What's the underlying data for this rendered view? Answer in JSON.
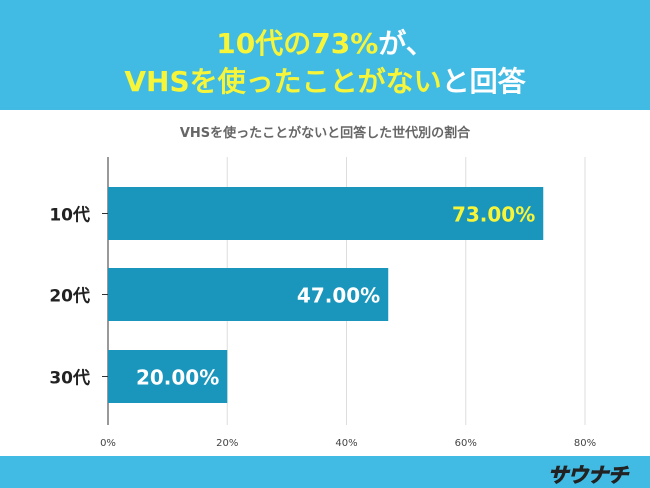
{
  "header": {
    "line1_highlight": "10代の73%",
    "line1_rest": "が、",
    "line2_highlight": "VHSを使ったことがない",
    "line2_rest": "と回答"
  },
  "footer": {
    "logo": "サウナチ"
  },
  "colors": {
    "banner": "#41bbe3",
    "bar": "#1a96bd",
    "highlight": "#f7f53a"
  },
  "chart_data": {
    "type": "bar",
    "orientation": "horizontal",
    "title": "VHSを使ったことがないと回答した世代別の割合",
    "categories": [
      "10代",
      "20代",
      "30代"
    ],
    "values": [
      73,
      47,
      20
    ],
    "data_labels": [
      "73.00%",
      "47.00%",
      "20.00%"
    ],
    "xlim": [
      0,
      80
    ],
    "xticks": [
      "0%",
      "20%",
      "40%",
      "60%",
      "80%"
    ],
    "grid": true,
    "legend": "none"
  }
}
